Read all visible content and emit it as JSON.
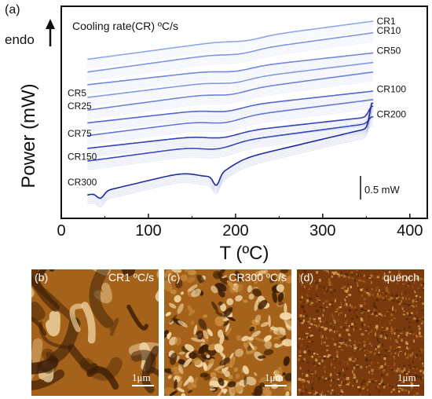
{
  "panel_a_label": "(a)",
  "endo_label": "endo",
  "legend_title": "Cooling rate(CR) ºC/s",
  "scale_label": "0.5 mW",
  "chart_data": {
    "type": "line",
    "title": "",
    "xlabel": "T (ºC)",
    "ylabel": "Power (mW)",
    "xlim": [
      0,
      420
    ],
    "xticks": [
      0,
      100,
      200,
      300,
      400
    ],
    "grid": false,
    "series": [
      {
        "name": "CR1",
        "color": "#8ea6ea",
        "start": [
          30,
          0.75
        ],
        "end": [
          358,
          0.93
        ],
        "dip_center": 212,
        "dip_depth": 0.012
      },
      {
        "name": "CR10",
        "color": "#7c95e4",
        "start": [
          30,
          0.69
        ],
        "end": [
          358,
          0.875
        ],
        "dip_center": 205,
        "dip_depth": 0.013
      },
      {
        "name": "CR50",
        "color": "#6f86de",
        "start": [
          30,
          0.63
        ],
        "end": [
          358,
          0.78
        ],
        "dip_center": 200,
        "dip_depth": 0.014
      },
      {
        "name": "CR5",
        "color": "#8098e2",
        "start": [
          30,
          0.57
        ],
        "end": [
          358,
          0.735
        ],
        "dip_center": 198,
        "dip_depth": 0.015
      },
      {
        "name": "CR25",
        "color": "#6a82da",
        "start": [
          30,
          0.51
        ],
        "end": [
          358,
          0.69
        ],
        "dip_center": 195,
        "dip_depth": 0.016
      },
      {
        "name": "CR100",
        "color": "#4d63cf",
        "start": [
          30,
          0.45
        ],
        "end": [
          358,
          0.6
        ],
        "dip_center": 190,
        "dip_depth": 0.018
      },
      {
        "name": "CR75",
        "color": "#5f76d6",
        "start": [
          30,
          0.39
        ],
        "end": [
          358,
          0.56
        ],
        "dip_center": 188,
        "dip_depth": 0.02
      },
      {
        "name": "CR200",
        "color": "#2d3fb5",
        "start": [
          30,
          0.33
        ],
        "end": [
          358,
          0.48
        ],
        "dip_center": 185,
        "dip_depth": 0.02
      },
      {
        "name": "CR150",
        "color": "#3346bd",
        "start": [
          30,
          0.27
        ],
        "end": [
          358,
          0.45
        ],
        "dip_center": 180,
        "dip_depth": 0.024
      },
      {
        "name": "CR300",
        "color": "#1a2a9c",
        "start": [
          30,
          0.11
        ],
        "end": [
          358,
          0.43
        ],
        "dip_center": 175,
        "dip_depth": 0.05
      }
    ],
    "labels": [
      "CR1",
      "CR10",
      "CR50",
      "CR5",
      "CR25",
      "CR100",
      "CR75",
      "CR200",
      "CR150",
      "CR300"
    ]
  },
  "afm_panels": [
    {
      "label": "(b)",
      "tag": "CR1 ºC/s",
      "scalebar": "1μm"
    },
    {
      "label": "(c)",
      "tag": "CR300 ºC/s",
      "scalebar": "1μm"
    },
    {
      "label": "(d)",
      "tag": "quench",
      "scalebar": "1μm"
    }
  ],
  "colors": {
    "afm_dark": "#3a1d06",
    "afm_mid": "#a5621a",
    "afm_light": "#f2d7a5"
  }
}
